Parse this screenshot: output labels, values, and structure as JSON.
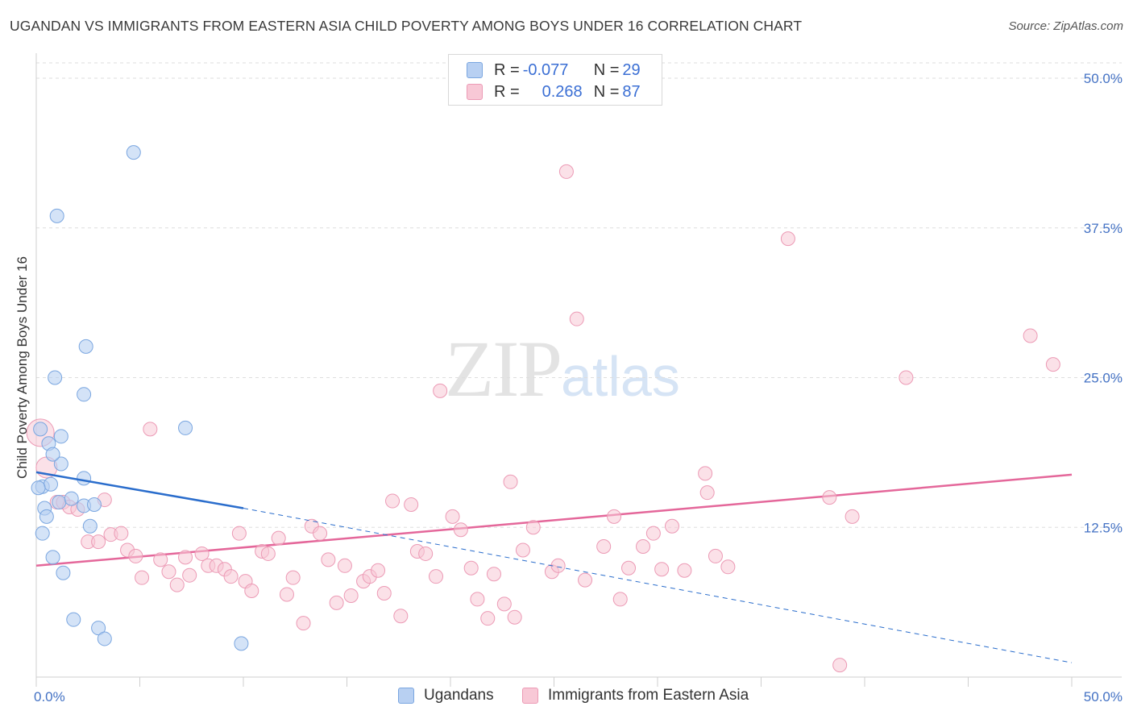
{
  "title": "UGANDAN VS IMMIGRANTS FROM EASTERN ASIA CHILD POVERTY AMONG BOYS UNDER 16 CORRELATION CHART",
  "source": "Source: ZipAtlas.com",
  "watermark": {
    "zip": "ZIP",
    "atlas": "atlas"
  },
  "legend": {
    "series1": {
      "r_label": "R = ",
      "r_value": "-0.077",
      "n_label": "N = ",
      "n_value": "29"
    },
    "series2": {
      "r_label": "R = ",
      "r_value": "0.268",
      "n_label": "N = ",
      "n_value": "87"
    }
  },
  "colors": {
    "ugandans_fill": "#b8d0f2",
    "ugandans_stroke": "#7aa6e0",
    "ugandans_line": "#2a6dcc",
    "asia_fill": "#f8c8d6",
    "asia_stroke": "#ec9ab5",
    "asia_line": "#e4679a",
    "grid": "#dddddd",
    "tick_label": "#4472c4"
  },
  "chart_data": {
    "type": "scatter",
    "title": "UGANDAN VS IMMIGRANTS FROM EASTERN ASIA CHILD POVERTY AMONG BOYS UNDER 16 CORRELATION CHART",
    "xlabel": "",
    "ylabel": "Child Poverty Among Boys Under 16",
    "xlim": [
      0,
      50
    ],
    "ylim": [
      0,
      50
    ],
    "x_tick_labels": [
      "0.0%",
      "50.0%"
    ],
    "y_ticks": [
      12.5,
      25.0,
      37.5,
      50.0
    ],
    "y_tick_labels": [
      "12.5%",
      "25.0%",
      "37.5%",
      "50.0%"
    ],
    "series": [
      {
        "name": "Ugandans",
        "r": -0.077,
        "n": 29,
        "points": [
          [
            0.2,
            20.7
          ],
          [
            0.6,
            19.5
          ],
          [
            1.2,
            17.8
          ],
          [
            0.8,
            18.6
          ],
          [
            1.2,
            20.1
          ],
          [
            0.3,
            15.9
          ],
          [
            0.7,
            16.1
          ],
          [
            0.4,
            14.1
          ],
          [
            1.1,
            14.6
          ],
          [
            0.5,
            13.4
          ],
          [
            1.7,
            14.9
          ],
          [
            0.3,
            12.0
          ],
          [
            0.8,
            10.0
          ],
          [
            1.3,
            8.7
          ],
          [
            2.3,
            16.6
          ],
          [
            2.3,
            14.3
          ],
          [
            2.6,
            12.6
          ],
          [
            2.8,
            14.4
          ],
          [
            1.8,
            4.8
          ],
          [
            3.0,
            4.1
          ],
          [
            3.3,
            3.2
          ],
          [
            4.7,
            43.8
          ],
          [
            1.0,
            38.5
          ],
          [
            2.4,
            27.6
          ],
          [
            0.9,
            25.0
          ],
          [
            2.3,
            23.6
          ],
          [
            7.2,
            20.8
          ],
          [
            9.9,
            2.8
          ],
          [
            0.1,
            15.8
          ]
        ],
        "trend": {
          "x1": 0,
          "y1": 17.1,
          "x2": 10,
          "y2": 14.1,
          "dash_to_x": 50,
          "dash_to_y": 1.2
        }
      },
      {
        "name": "Immigrants from Eastern Asia",
        "r": 0.268,
        "n": 87,
        "points": [
          [
            0.2,
            20.4
          ],
          [
            0.5,
            17.5
          ],
          [
            1.0,
            14.6
          ],
          [
            1.3,
            14.6
          ],
          [
            1.6,
            14.2
          ],
          [
            3.3,
            14.8
          ],
          [
            2.0,
            14.0
          ],
          [
            2.5,
            11.3
          ],
          [
            3.0,
            11.3
          ],
          [
            3.6,
            11.9
          ],
          [
            4.1,
            12.0
          ],
          [
            4.4,
            10.6
          ],
          [
            4.8,
            10.1
          ],
          [
            5.1,
            8.3
          ],
          [
            5.5,
            20.7
          ],
          [
            6.0,
            9.8
          ],
          [
            6.4,
            8.8
          ],
          [
            6.8,
            7.7
          ],
          [
            7.2,
            10.0
          ],
          [
            7.4,
            8.5
          ],
          [
            8.0,
            10.3
          ],
          [
            8.3,
            9.3
          ],
          [
            8.7,
            9.3
          ],
          [
            9.1,
            9.0
          ],
          [
            9.4,
            8.4
          ],
          [
            9.8,
            12.0
          ],
          [
            10.1,
            8.0
          ],
          [
            10.4,
            7.2
          ],
          [
            10.9,
            10.5
          ],
          [
            11.2,
            10.3
          ],
          [
            11.7,
            11.6
          ],
          [
            12.1,
            6.9
          ],
          [
            12.4,
            8.3
          ],
          [
            12.9,
            4.5
          ],
          [
            13.3,
            12.6
          ],
          [
            13.7,
            12.0
          ],
          [
            14.1,
            9.8
          ],
          [
            14.5,
            6.2
          ],
          [
            14.9,
            9.3
          ],
          [
            15.2,
            6.8
          ],
          [
            15.8,
            8.0
          ],
          [
            16.1,
            8.4
          ],
          [
            16.5,
            8.9
          ],
          [
            16.8,
            7.0
          ],
          [
            17.2,
            14.7
          ],
          [
            17.6,
            5.1
          ],
          [
            18.1,
            14.4
          ],
          [
            18.4,
            10.5
          ],
          [
            18.8,
            10.3
          ],
          [
            19.3,
            8.4
          ],
          [
            19.5,
            23.9
          ],
          [
            20.1,
            13.4
          ],
          [
            20.5,
            12.3
          ],
          [
            21.0,
            9.1
          ],
          [
            21.3,
            6.5
          ],
          [
            21.8,
            4.9
          ],
          [
            22.1,
            8.6
          ],
          [
            22.6,
            6.1
          ],
          [
            22.9,
            16.3
          ],
          [
            23.1,
            5.0
          ],
          [
            23.5,
            10.6
          ],
          [
            24.0,
            12.5
          ],
          [
            24.9,
            8.8
          ],
          [
            25.2,
            9.3
          ],
          [
            25.6,
            42.2
          ],
          [
            26.1,
            29.9
          ],
          [
            26.5,
            8.1
          ],
          [
            27.4,
            10.9
          ],
          [
            27.9,
            13.4
          ],
          [
            28.2,
            6.5
          ],
          [
            28.6,
            9.1
          ],
          [
            29.3,
            10.9
          ],
          [
            29.8,
            12.0
          ],
          [
            30.2,
            9.0
          ],
          [
            30.7,
            12.6
          ],
          [
            31.3,
            8.9
          ],
          [
            32.3,
            17.0
          ],
          [
            32.4,
            15.4
          ],
          [
            32.8,
            10.1
          ],
          [
            33.4,
            9.2
          ],
          [
            36.3,
            36.6
          ],
          [
            38.3,
            15.0
          ],
          [
            38.8,
            1.0
          ],
          [
            39.4,
            13.4
          ],
          [
            42.0,
            25.0
          ],
          [
            48.0,
            28.5
          ],
          [
            49.1,
            26.1
          ]
        ],
        "trend": {
          "x1": 0,
          "y1": 9.3,
          "x2": 50,
          "y2": 16.9
        }
      }
    ],
    "legend": [
      "Ugandans",
      "Immigrants from Eastern Asia"
    ]
  }
}
